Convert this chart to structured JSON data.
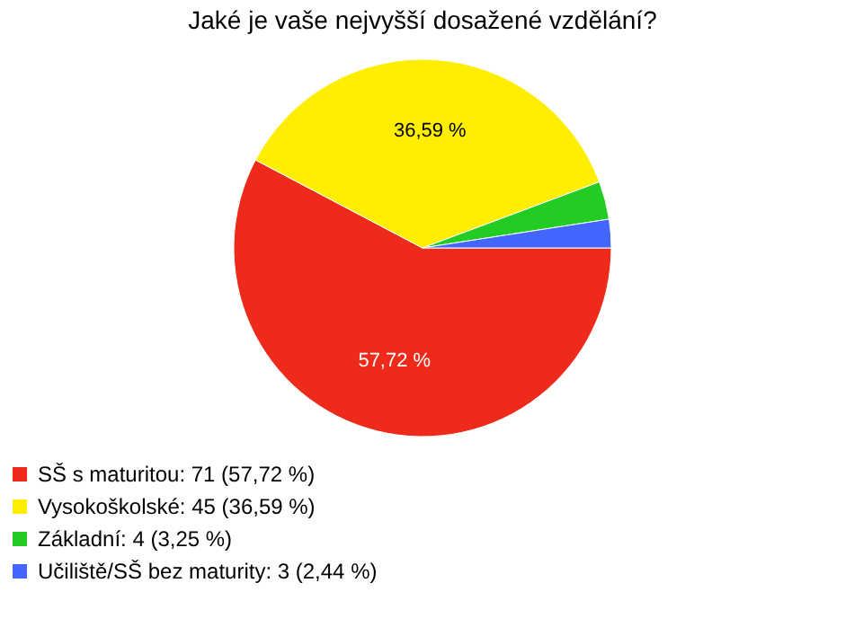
{
  "chart_data": {
    "type": "pie",
    "title": "Jaké je vaše nejvyšší dosažené vzdělání?",
    "categories": [
      "SŠ s maturitou: 71 (57,72 %)",
      "Vysokoškolské: 45 (36,59 %)",
      "Základní: 4 (3,25 %)",
      "Učiliště/SŠ bez maturity: 3 (2,44 %)"
    ],
    "values": [
      57.72,
      36.59,
      3.25,
      2.44
    ],
    "colors": [
      "#ee2a1a",
      "#ffee00",
      "#22cc22",
      "#4466ff"
    ],
    "value_labels": [
      "57,72 %",
      "36,59 %",
      null,
      null
    ],
    "legend": "bottom left"
  }
}
